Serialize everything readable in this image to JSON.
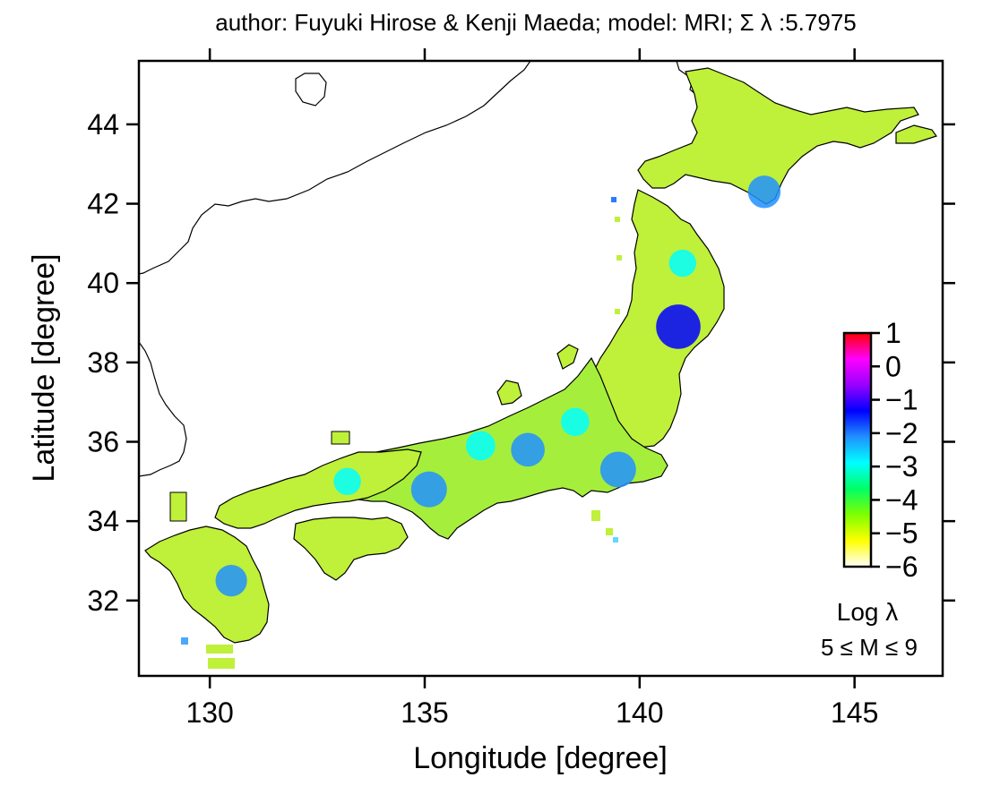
{
  "title": "author: Fuyuki Hirose & Kenji Maeda; model: MRI; Σ λ :5.7975",
  "x_axis": {
    "label": "Longitude [degree]",
    "range": [
      128.35,
      147.05
    ],
    "ticks": [
      130,
      135,
      140,
      145
    ],
    "tick_labels": [
      "130",
      "135",
      "140",
      "145"
    ]
  },
  "y_axis": {
    "label": "Latitude [degree]",
    "range": [
      30.1,
      45.6
    ],
    "ticks": [
      32,
      34,
      36,
      38,
      40,
      42,
      44
    ],
    "tick_labels": [
      "32",
      "34",
      "36",
      "38",
      "40",
      "42",
      "44"
    ]
  },
  "colorbar": {
    "range": [
      -6,
      1
    ],
    "tick_labels": [
      "1",
      "0",
      "−1",
      "−2",
      "−3",
      "−4",
      "−5",
      "−6"
    ],
    "label": "Log λ",
    "sublabel": "5 ≤ M ≤ 9",
    "colors": [
      "#ffffff",
      "#ffff00",
      "#7fff00",
      "#00ff66",
      "#00ffff",
      "#2090ff",
      "#0000ff",
      "#9900ff",
      "#ff00ff",
      "#ff0000"
    ]
  },
  "chart_data": {
    "type": "heatmap",
    "value_name": "Log λ",
    "typical_value": -4.2,
    "hotspots": [
      {
        "lon": 140.9,
        "lat": 38.9,
        "value": -1.2
      },
      {
        "lon": 135.1,
        "lat": 34.8,
        "value": -2.0
      },
      {
        "lon": 137.4,
        "lat": 35.8,
        "value": -2.2
      },
      {
        "lon": 139.5,
        "lat": 35.3,
        "value": -2.0
      },
      {
        "lon": 142.9,
        "lat": 42.3,
        "value": -2.3
      },
      {
        "lon": 130.5,
        "lat": 32.5,
        "value": -2.4
      },
      {
        "lon": 136.3,
        "lat": 35.9,
        "value": -2.6
      },
      {
        "lon": 138.5,
        "lat": 36.5,
        "value": -2.7
      },
      {
        "lon": 133.2,
        "lat": 35.0,
        "value": -2.8
      },
      {
        "lon": 141.0,
        "lat": 40.5,
        "value": -2.8
      }
    ]
  }
}
